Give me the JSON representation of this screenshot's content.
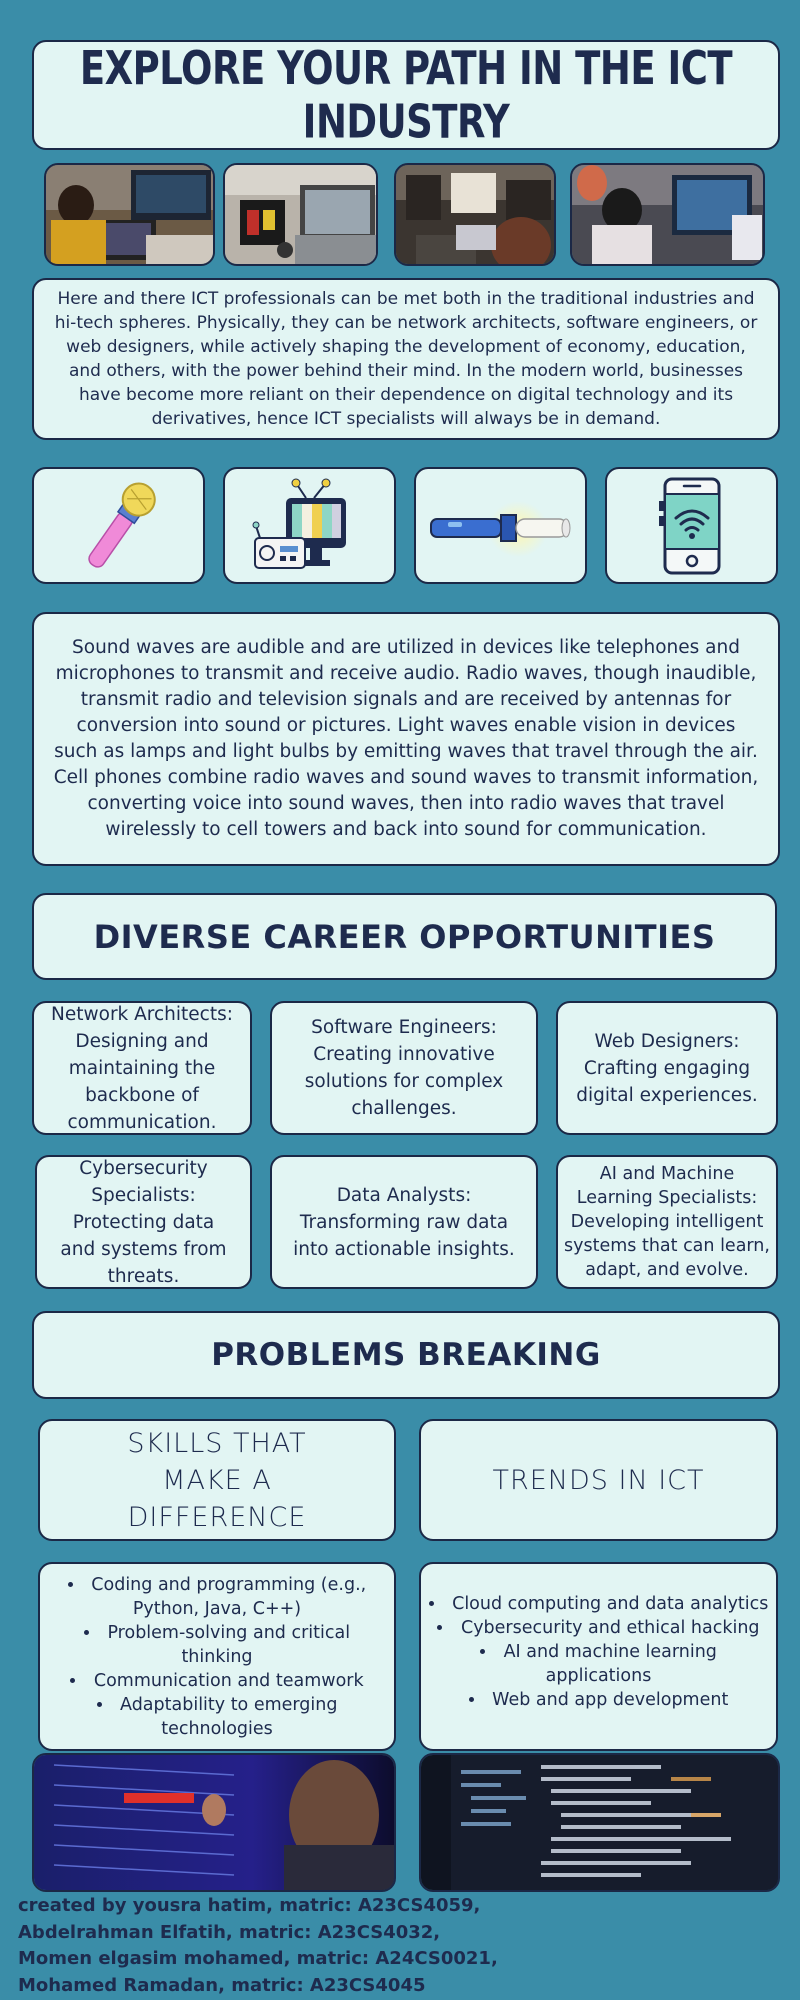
{
  "title": "EXPLORE YOUR PATH IN THE ICT INDUSTRY",
  "photos_top": [
    {
      "name": "person-laptops-photo"
    },
    {
      "name": "hardware-workbench-photo"
    },
    {
      "name": "meeting-room-photo"
    },
    {
      "name": "students-computer-photo"
    }
  ],
  "intro_text": "Here and there ICT professionals can be met both in the traditional industries and hi-tech spheres. Physically, they can be network architects, software engineers, or web designers, while actively shaping the development of economy, education, and others, with the power behind their mind. In the modern world, businesses have become more reliant on their dependence on digital technology and its derivatives, hence ICT specialists will always be in demand.",
  "icons": [
    "microphone-icon",
    "radio-tv-icon",
    "flashlight-icon",
    "smartphone-wifi-icon"
  ],
  "waves_text": "Sound waves are audible and are utilized in devices like telephones and microphones to transmit and receive audio. Radio waves, though inaudible, transmit radio and television signals and are received by antennas for conversion into sound or pictures. Light waves enable vision in devices such as lamps and light bulbs by emitting waves that travel through the air. Cell phones combine radio waves and sound waves to transmit information, converting voice into sound waves, then into radio waves that travel wirelessly to cell towers and back into sound for communication.",
  "careers_heading": "DIVERSE CAREER OPPORTUNITIES",
  "careers": [
    "Network Architects: Designing and maintaining the backbone of communication.",
    "Software Engineers: Creating innovative solutions for complex challenges.",
    "Web Designers: Crafting engaging digital experiences.",
    "Cybersecurity Specialists: Protecting data and systems from threats.",
    "Data Analysts: Transforming raw data into actionable insights.",
    "AI and Machine Learning Specialists: Developing intelligent systems that can learn, adapt, and evolve."
  ],
  "problems_heading": "PROBLEMS BREAKING",
  "skills_heading": "SKILLS THAT MAKE A DIFFERENCE",
  "trends_heading": "TRENDS IN ICT",
  "skills": [
    "Coding and programming (e.g., Python, Java, C++)",
    "Problem-solving and critical thinking",
    "Communication and teamwork",
    "Adaptability to emerging technologies"
  ],
  "trends": [
    "Cloud computing and data analytics",
    "Cybersecurity and ethical hacking",
    "AI and machine learning applications",
    "Web and app development"
  ],
  "photos_bottom": [
    {
      "name": "server-rack-technician-photo"
    },
    {
      "name": "code-screen-photo"
    }
  ],
  "credits": [
    "created by yousra hatim, matric: A23CS4059,",
    "Abdelrahman Elfatih, matric: A23CS4032,",
    "Momen elgasim mohamed, matric: A24CS0021,",
    "Mohamed Ramadan, matric: A23CS4045"
  ],
  "colors": {
    "background": "#3a8da8",
    "panel": "#e2f5f3",
    "text": "#1e2b4e",
    "border": "#1b2846"
  }
}
